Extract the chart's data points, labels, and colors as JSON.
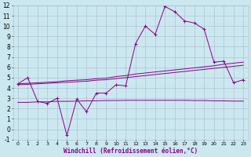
{
  "xlabel": "Windchill (Refroidissement éolien,°C)",
  "bg_color": "#cbe8f0",
  "grid_color": "#aab8cc",
  "line_color": "#880088",
  "x_values": [
    0,
    1,
    2,
    3,
    4,
    5,
    6,
    7,
    8,
    9,
    10,
    11,
    12,
    13,
    14,
    15,
    16,
    17,
    18,
    19,
    20,
    21,
    22,
    23
  ],
  "main_line": [
    4.4,
    5.0,
    2.7,
    2.5,
    3.0,
    -0.6,
    2.9,
    1.7,
    3.5,
    3.5,
    4.3,
    4.2,
    8.3,
    10.0,
    9.2,
    11.9,
    11.4,
    10.5,
    10.3,
    9.7,
    6.5,
    6.6,
    4.5,
    4.8
  ],
  "upper_line": [
    4.4,
    4.45,
    4.5,
    4.55,
    4.6,
    4.7,
    4.75,
    4.8,
    4.9,
    4.95,
    5.1,
    5.2,
    5.35,
    5.45,
    5.55,
    5.65,
    5.75,
    5.85,
    5.95,
    6.05,
    6.15,
    6.3,
    6.4,
    6.5
  ],
  "mid_line": [
    4.3,
    4.35,
    4.4,
    4.45,
    4.5,
    4.55,
    4.6,
    4.65,
    4.75,
    4.8,
    4.9,
    5.0,
    5.1,
    5.2,
    5.3,
    5.4,
    5.5,
    5.6,
    5.7,
    5.8,
    5.9,
    6.0,
    6.1,
    6.2
  ],
  "lower_line": [
    2.6,
    2.6,
    2.65,
    2.65,
    2.7,
    2.7,
    2.72,
    2.75,
    2.75,
    2.78,
    2.78,
    2.8,
    2.8,
    2.8,
    2.8,
    2.8,
    2.8,
    2.8,
    2.78,
    2.78,
    2.75,
    2.75,
    2.72,
    2.72
  ],
  "ylim": [
    -1,
    12
  ],
  "xlim": [
    -0.5,
    23.5
  ],
  "yticks": [
    -1,
    0,
    1,
    2,
    3,
    4,
    5,
    6,
    7,
    8,
    9,
    10,
    11,
    12
  ],
  "xticks": [
    0,
    1,
    2,
    3,
    4,
    5,
    6,
    7,
    8,
    9,
    10,
    11,
    12,
    13,
    14,
    15,
    16,
    17,
    18,
    19,
    20,
    21,
    22,
    23
  ],
  "tick_fontsize": 5.5,
  "xlabel_fontsize": 5.5,
  "marker_size": 3,
  "linewidth": 0.7
}
